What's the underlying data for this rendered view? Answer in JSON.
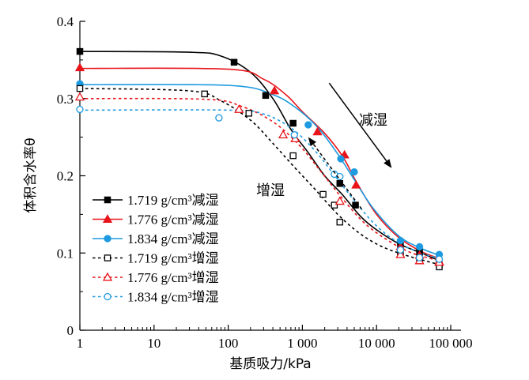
{
  "chart_data": {
    "type": "scatter",
    "title": "",
    "xlabel": "基质吸力/kPa",
    "ylabel": "体积含水率θ",
    "xscale": "log",
    "xlim": [
      1,
      100000
    ],
    "ylim": [
      0,
      0.4
    ],
    "xticks": [
      {
        "value": 1,
        "label": "1"
      },
      {
        "value": 10,
        "label": "10"
      },
      {
        "value": 100,
        "label": "100"
      },
      {
        "value": 1000,
        "label": "1 000"
      },
      {
        "value": 10000,
        "label": "10 000"
      },
      {
        "value": 100000,
        "label": "100 000"
      }
    ],
    "yticks": [
      {
        "value": 0,
        "label": "0"
      },
      {
        "value": 0.1,
        "label": "0.1"
      },
      {
        "value": 0.2,
        "label": "0.2"
      },
      {
        "value": 0.3,
        "label": "0.3"
      },
      {
        "value": 0.4,
        "label": "0.4"
      }
    ],
    "grid": false,
    "legend_position": "bottom-left",
    "series": [
      {
        "name": "1.719 g/cm³减湿",
        "color": "#000000",
        "marker": "square",
        "filled": true,
        "dashed": false,
        "points": [
          [
            1,
            0.361
          ],
          [
            120,
            0.347
          ],
          [
            320,
            0.304
          ],
          [
            750,
            0.268
          ],
          [
            3200,
            0.19
          ],
          [
            5200,
            0.162
          ],
          [
            21000,
            0.11
          ],
          [
            38000,
            0.101
          ],
          [
            70000,
            0.085
          ]
        ],
        "curve": [
          [
            1,
            0.361
          ],
          [
            30,
            0.36
          ],
          [
            80,
            0.355
          ],
          [
            200,
            0.334
          ],
          [
            400,
            0.3
          ],
          [
            700,
            0.26
          ],
          [
            1200,
            0.23
          ],
          [
            2000,
            0.2
          ],
          [
            3500,
            0.175
          ],
          [
            6000,
            0.148
          ],
          [
            10000,
            0.13
          ],
          [
            20000,
            0.112
          ],
          [
            40000,
            0.1
          ],
          [
            70000,
            0.09
          ]
        ]
      },
      {
        "name": "1.776 g/cm³减湿",
        "color": "#e8141a",
        "marker": "triangle",
        "filled": true,
        "dashed": false,
        "points": [
          [
            1,
            0.34
          ],
          [
            420,
            0.31
          ],
          [
            1600,
            0.257
          ],
          [
            3700,
            0.227
          ],
          [
            5300,
            0.188
          ],
          [
            21000,
            0.108
          ],
          [
            38000,
            0.097
          ],
          [
            70000,
            0.089
          ]
        ],
        "curve": [
          [
            1,
            0.339
          ],
          [
            100,
            0.338
          ],
          [
            300,
            0.325
          ],
          [
            600,
            0.305
          ],
          [
            1000,
            0.283
          ],
          [
            2000,
            0.255
          ],
          [
            3500,
            0.225
          ],
          [
            5500,
            0.19
          ],
          [
            10000,
            0.15
          ],
          [
            20000,
            0.12
          ],
          [
            40000,
            0.102
          ],
          [
            70000,
            0.093
          ]
        ]
      },
      {
        "name": "1.834 g/cm³减湿",
        "color": "#1e9be0",
        "marker": "circle",
        "filled": true,
        "dashed": false,
        "points": [
          [
            1,
            0.319
          ],
          [
            1200,
            0.266
          ],
          [
            3300,
            0.222
          ],
          [
            5000,
            0.205
          ],
          [
            21000,
            0.116
          ],
          [
            38000,
            0.108
          ],
          [
            70000,
            0.098
          ]
        ],
        "curve": [
          [
            1,
            0.318
          ],
          [
            100,
            0.317
          ],
          [
            400,
            0.305
          ],
          [
            900,
            0.285
          ],
          [
            1700,
            0.26
          ],
          [
            3000,
            0.228
          ],
          [
            5000,
            0.195
          ],
          [
            9000,
            0.158
          ],
          [
            20000,
            0.122
          ],
          [
            40000,
            0.106
          ],
          [
            70000,
            0.097
          ]
        ]
      },
      {
        "name": "1.719 g/cm³增湿",
        "color": "#000000",
        "marker": "square",
        "filled": false,
        "dashed": true,
        "points": [
          [
            1,
            0.313
          ],
          [
            48,
            0.306
          ],
          [
            190,
            0.281
          ],
          [
            750,
            0.226
          ],
          [
            1900,
            0.176
          ],
          [
            2700,
            0.162
          ],
          [
            3200,
            0.14
          ],
          [
            21000,
            0.1
          ],
          [
            38000,
            0.092
          ],
          [
            70000,
            0.082
          ]
        ],
        "curve": [
          [
            1,
            0.313
          ],
          [
            30,
            0.31
          ],
          [
            80,
            0.297
          ],
          [
            200,
            0.272
          ],
          [
            400,
            0.242
          ],
          [
            800,
            0.21
          ],
          [
            1500,
            0.182
          ],
          [
            3000,
            0.15
          ],
          [
            6000,
            0.125
          ],
          [
            12000,
            0.108
          ],
          [
            25000,
            0.097
          ],
          [
            45000,
            0.09
          ],
          [
            70000,
            0.085
          ]
        ]
      },
      {
        "name": "1.776 g/cm³增湿",
        "color": "#e8141a",
        "marker": "triangle",
        "filled": false,
        "dashed": true,
        "points": [
          [
            1,
            0.302
          ],
          [
            140,
            0.286
          ],
          [
            550,
            0.253
          ],
          [
            800,
            0.248
          ],
          [
            3200,
            0.167
          ],
          [
            21000,
            0.098
          ],
          [
            38000,
            0.09
          ],
          [
            70000,
            0.088
          ]
        ],
        "curve": [
          [
            1,
            0.3
          ],
          [
            50,
            0.299
          ],
          [
            150,
            0.29
          ],
          [
            400,
            0.27
          ],
          [
            900,
            0.24
          ],
          [
            1800,
            0.205
          ],
          [
            3500,
            0.17
          ],
          [
            7000,
            0.138
          ],
          [
            15000,
            0.115
          ],
          [
            30000,
            0.1
          ],
          [
            70000,
            0.09
          ]
        ]
      },
      {
        "name": "1.834 g/cm³增湿",
        "color": "#1e9be0",
        "marker": "circle",
        "filled": false,
        "dashed": true,
        "points": [
          [
            1,
            0.286
          ],
          [
            75,
            0.275
          ],
          [
            780,
            0.253
          ],
          [
            2700,
            0.202
          ],
          [
            3200,
            0.199
          ],
          [
            21000,
            0.104
          ],
          [
            38000,
            0.094
          ],
          [
            70000,
            0.092
          ]
        ],
        "curve": [
          [
            1,
            0.285
          ],
          [
            100,
            0.285
          ],
          [
            300,
            0.28
          ],
          [
            700,
            0.262
          ],
          [
            1400,
            0.235
          ],
          [
            2500,
            0.205
          ],
          [
            5000,
            0.168
          ],
          [
            10000,
            0.135
          ],
          [
            20000,
            0.113
          ],
          [
            40000,
            0.1
          ],
          [
            70000,
            0.093
          ]
        ]
      }
    ],
    "annotations": {
      "drying": {
        "label": "减湿",
        "from": [
          2300,
          0.32
        ],
        "to": [
          16000,
          0.21
        ]
      },
      "wetting": {
        "label": "增湿",
        "from": [
          6300,
          0.157
        ],
        "to": [
          1200,
          0.25
        ]
      }
    }
  }
}
